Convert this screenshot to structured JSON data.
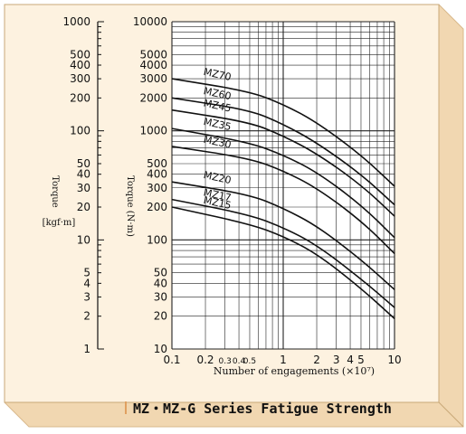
{
  "caption": "MZ・MZ-G Series Fatigue Strength",
  "colors": {
    "frame_fill": "#fdf2e0",
    "frame_shadow": "#f1d7b1",
    "ink": "#111111"
  },
  "chart_data": {
    "type": "line",
    "x_scale": "log",
    "y_scale": "log",
    "xlabel": "Number of engagements (×10⁷)",
    "xlim": [
      0.1,
      10
    ],
    "x_ticks": [
      "0.1",
      "0.2",
      "0.3",
      "0.4",
      "0.5",
      "1",
      "2",
      "3",
      "4",
      "5",
      "10"
    ],
    "ylabel": "Torque (N·m)",
    "ylim": [
      10,
      10000
    ],
    "y_ticks": [
      "10",
      "20",
      "30",
      "40",
      "50",
      "100",
      "200",
      "300",
      "400",
      "500",
      "1000",
      "2000",
      "3000",
      "4000",
      "5000",
      "10000"
    ],
    "secondary_axis": {
      "label": "Torque",
      "unit": "[kgf·m]",
      "range": [
        1,
        1000
      ],
      "ticks": [
        "1",
        "2",
        "3",
        "4",
        "5",
        "10",
        "20",
        "30",
        "40",
        "50",
        "100",
        "200",
        "300",
        "400",
        "500",
        "1000"
      ]
    },
    "grid": true,
    "series": [
      {
        "name": "MZ70",
        "x": [
          0.1,
          0.5,
          1,
          2,
          5,
          10
        ],
        "y": [
          3000,
          2300,
          1750,
          1200,
          600,
          310
        ]
      },
      {
        "name": "MZ60",
        "x": [
          0.1,
          0.5,
          1,
          2,
          5,
          10
        ],
        "y": [
          2000,
          1550,
          1150,
          780,
          400,
          210
        ]
      },
      {
        "name": "MZ45",
        "x": [
          0.1,
          0.5,
          1,
          2,
          5,
          10
        ],
        "y": [
          1550,
          1200,
          900,
          620,
          320,
          165
        ]
      },
      {
        "name": "MZ35",
        "x": [
          0.1,
          0.5,
          1,
          2,
          5,
          10
        ],
        "y": [
          1050,
          780,
          600,
          420,
          210,
          105
        ]
      },
      {
        "name": "MZ30",
        "x": [
          0.1,
          0.5,
          1,
          2,
          5,
          10
        ],
        "y": [
          720,
          560,
          430,
          300,
          150,
          75
        ]
      },
      {
        "name": "MZ20",
        "x": [
          0.1,
          0.5,
          1,
          2,
          5,
          10
        ],
        "y": [
          340,
          260,
          195,
          135,
          66,
          35
        ]
      },
      {
        "name": "MZ17",
        "x": [
          0.1,
          0.5,
          1,
          2,
          5,
          10
        ],
        "y": [
          235,
          170,
          130,
          90,
          44,
          24
        ]
      },
      {
        "name": "MZ15",
        "x": [
          0.1,
          0.5,
          1,
          2,
          5,
          10
        ],
        "y": [
          200,
          140,
          108,
          75,
          36,
          19
        ]
      }
    ]
  }
}
